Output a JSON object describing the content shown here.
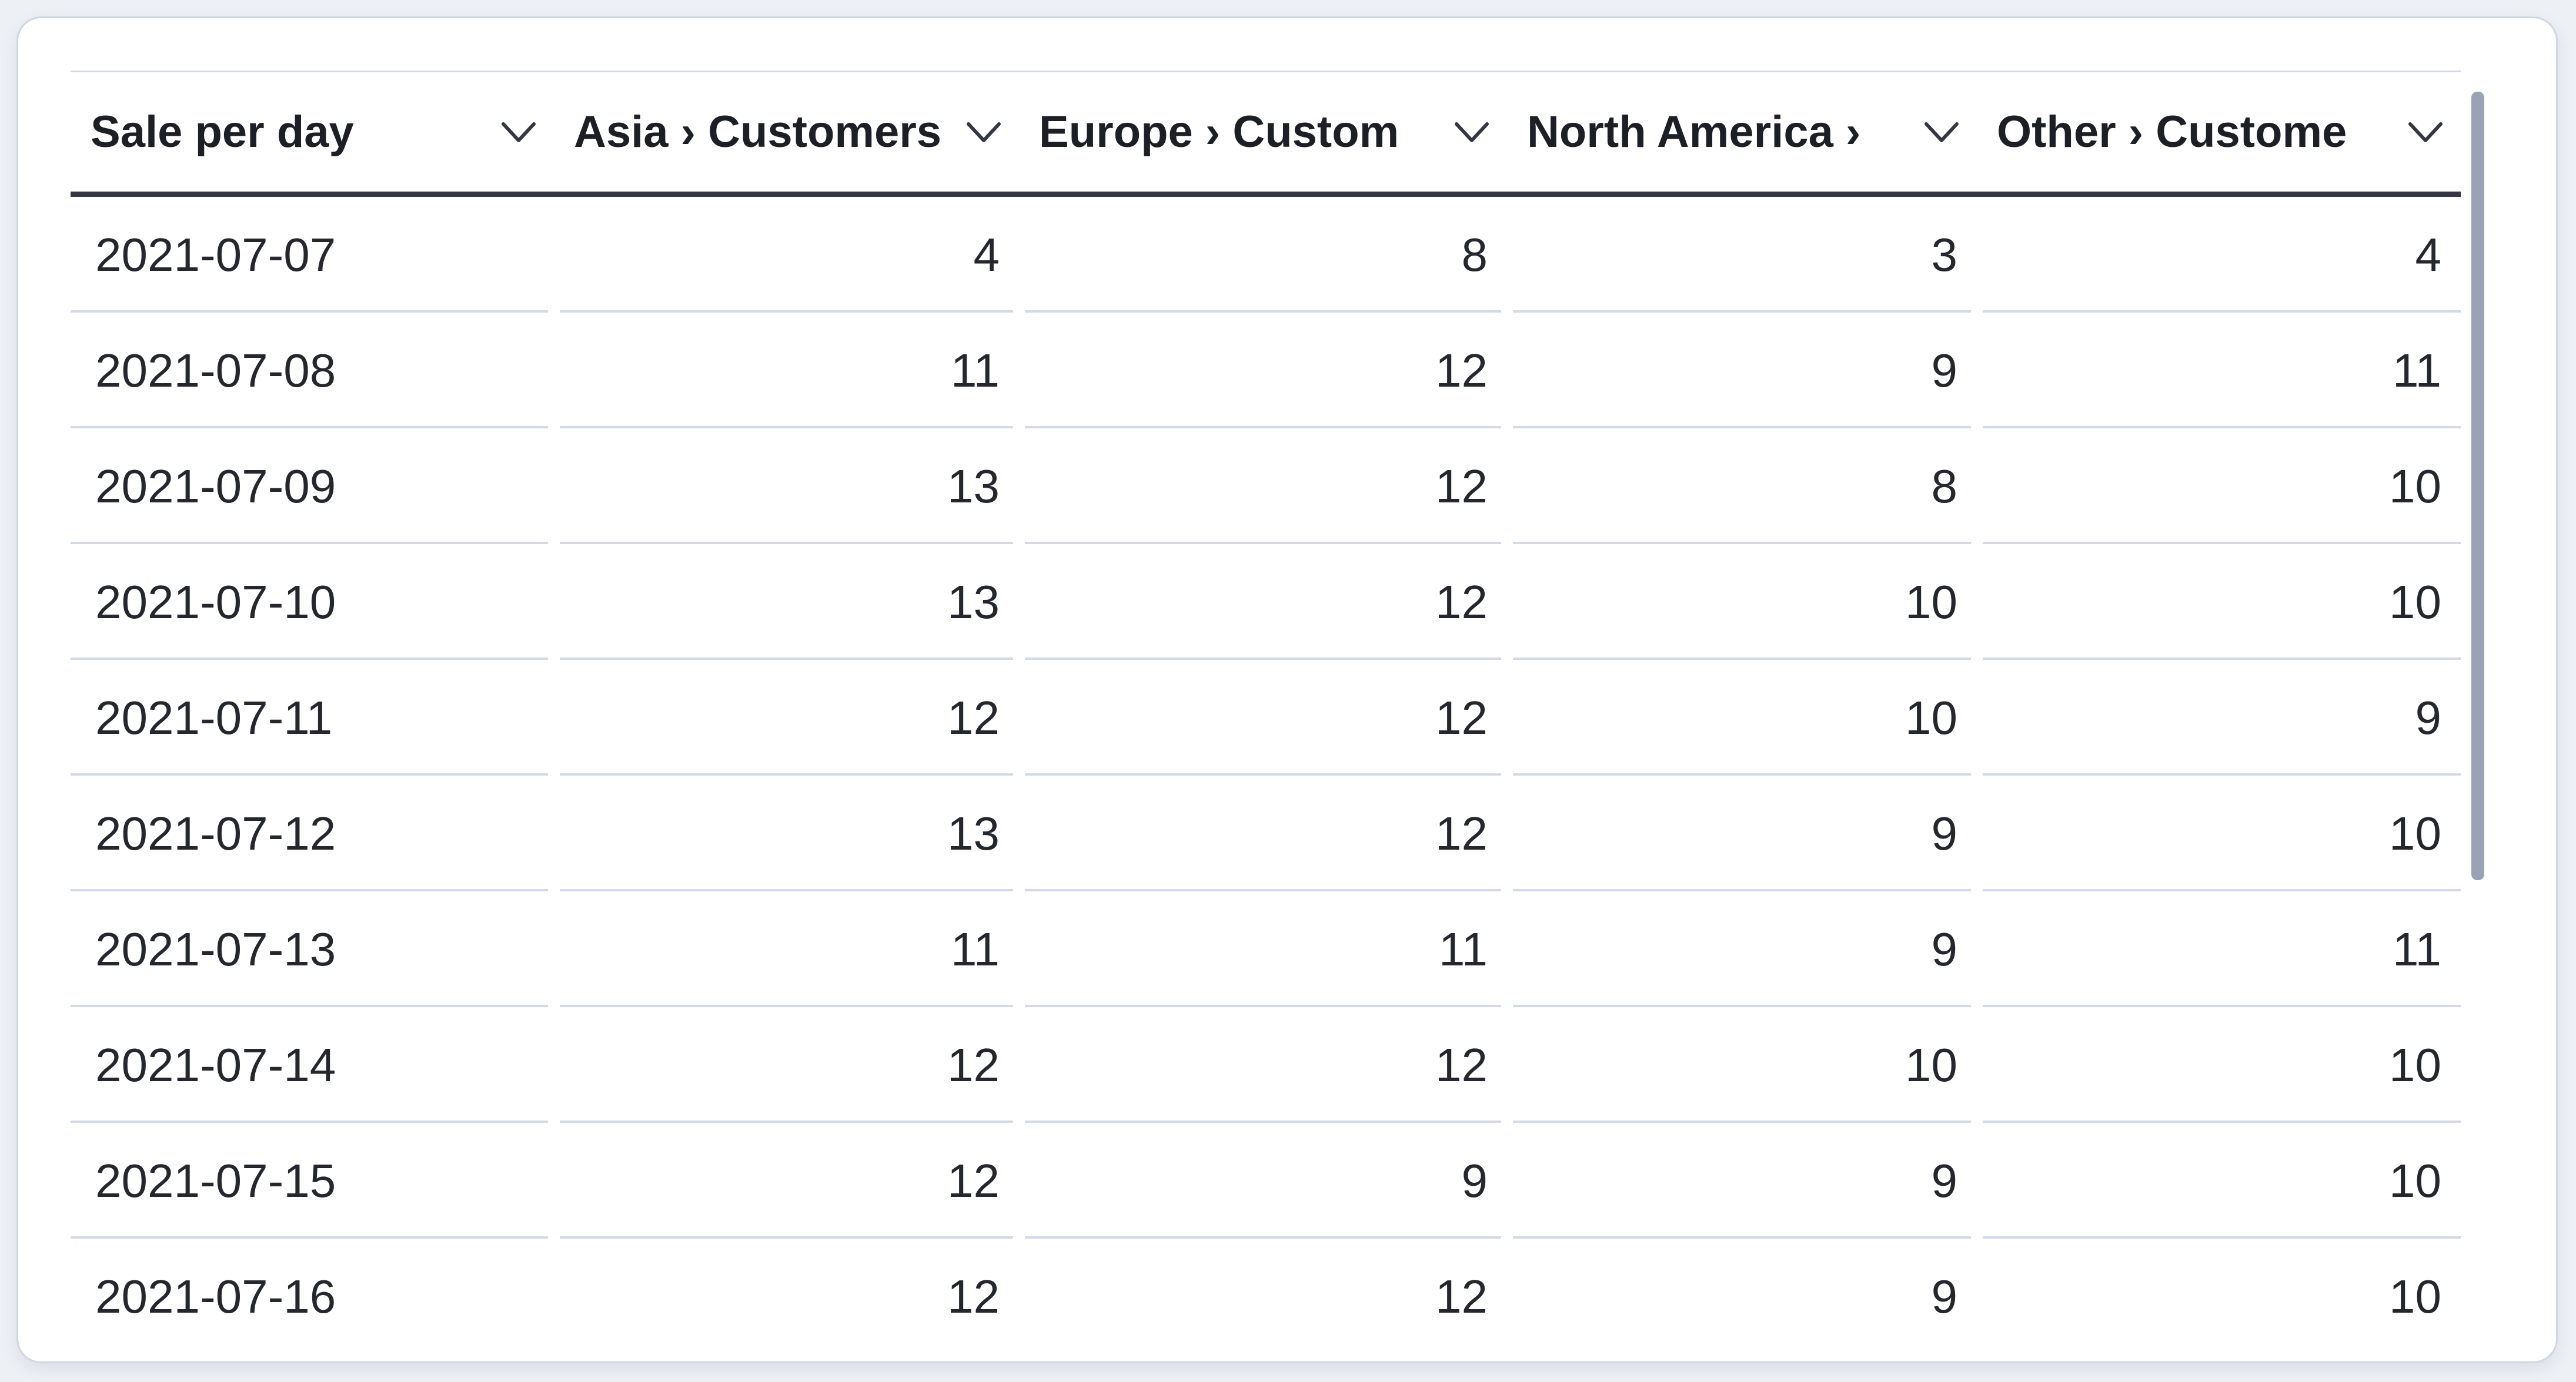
{
  "page_background": "#edf0f5",
  "panel": {
    "background": "#ffffff",
    "border_color": "#cfd7e3"
  },
  "colors": {
    "header_underline": "#343741",
    "row_separator": "#d3dae6",
    "scrollbar_thumb": "#9aa3b3",
    "header_text": "#1d1f26",
    "cell_text": "#25272e"
  },
  "table": {
    "columns": [
      {
        "id": "date",
        "label": "Sale per day",
        "align": "left",
        "sort_icon": "chevron-down-icon"
      },
      {
        "id": "asia",
        "label": "Asia › Customers",
        "align": "right",
        "sort_icon": "chevron-down-icon"
      },
      {
        "id": "europe",
        "label": "Europe › Custom",
        "align": "right",
        "sort_icon": "chevron-down-icon"
      },
      {
        "id": "north_america",
        "label": "North America ›",
        "align": "right",
        "sort_icon": "chevron-down-icon"
      },
      {
        "id": "other",
        "label": "Other › Custome",
        "align": "right",
        "sort_icon": "chevron-down-icon"
      }
    ],
    "rows": [
      {
        "date": "2021-07-07",
        "asia": "4",
        "europe": "8",
        "north_america": "3",
        "other": "4"
      },
      {
        "date": "2021-07-08",
        "asia": "11",
        "europe": "12",
        "north_america": "9",
        "other": "11"
      },
      {
        "date": "2021-07-09",
        "asia": "13",
        "europe": "12",
        "north_america": "8",
        "other": "10"
      },
      {
        "date": "2021-07-10",
        "asia": "13",
        "europe": "12",
        "north_america": "10",
        "other": "10"
      },
      {
        "date": "2021-07-11",
        "asia": "12",
        "europe": "12",
        "north_america": "10",
        "other": "9"
      },
      {
        "date": "2021-07-12",
        "asia": "13",
        "europe": "12",
        "north_america": "9",
        "other": "10"
      },
      {
        "date": "2021-07-13",
        "asia": "11",
        "europe": "11",
        "north_america": "9",
        "other": "11"
      },
      {
        "date": "2021-07-14",
        "asia": "12",
        "europe": "12",
        "north_america": "10",
        "other": "10"
      },
      {
        "date": "2021-07-15",
        "asia": "12",
        "europe": "9",
        "north_america": "9",
        "other": "10"
      },
      {
        "date": "2021-07-16",
        "asia": "12",
        "europe": "12",
        "north_america": "9",
        "other": "10"
      }
    ]
  },
  "scrollbar": {
    "orientation": "vertical",
    "position": "top"
  }
}
